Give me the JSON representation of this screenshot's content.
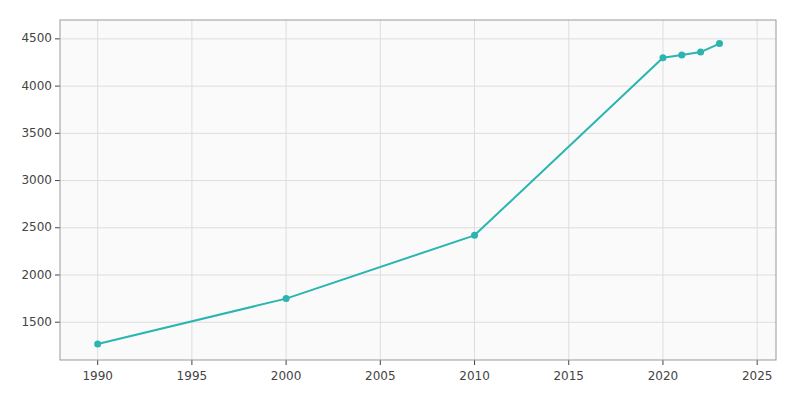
{
  "chart_data": {
    "type": "line",
    "x": [
      1990,
      2000,
      2010,
      2020,
      2021,
      2022,
      2023
    ],
    "values": [
      1270,
      1750,
      2420,
      4300,
      4330,
      4360,
      4450
    ],
    "color": "#2ab5b0",
    "marker": "circle",
    "xlim": [
      1988,
      2026
    ],
    "ylim": [
      1100,
      4700
    ],
    "xticks": [
      1990,
      1995,
      2000,
      2005,
      2010,
      2015,
      2020,
      2025
    ],
    "yticks": [
      1500,
      2000,
      2500,
      3000,
      3500,
      4000,
      4500
    ],
    "grid": true
  }
}
